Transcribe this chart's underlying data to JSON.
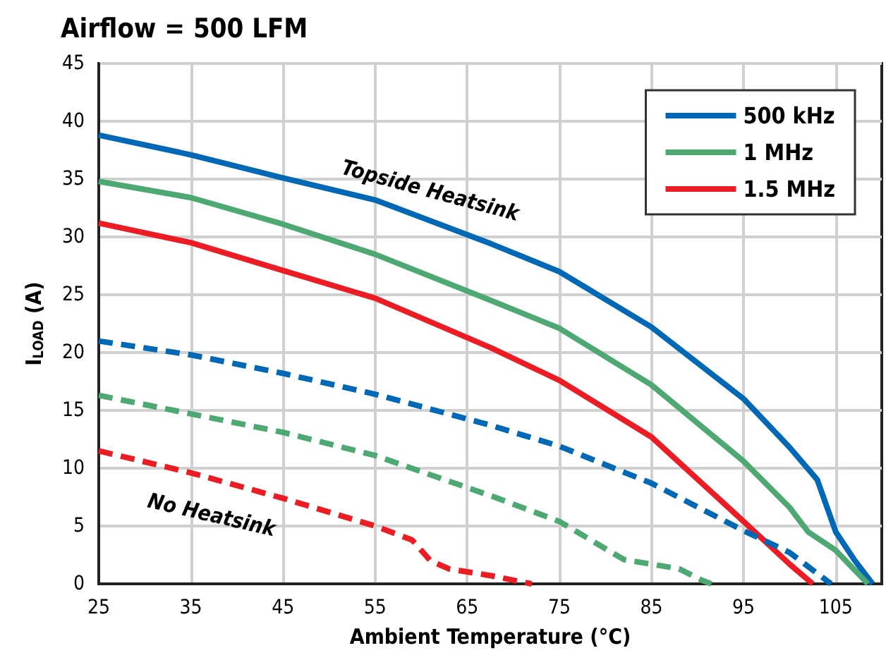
{
  "chart_data": {
    "type": "line",
    "title": "Airflow = 500 LFM",
    "xlabel": "Ambient Temperature (°C)",
    "ylabel": "I$_{LOAD}$ (A)",
    "annotations": [
      "Topside Heatsink",
      "No Heatsink"
    ],
    "xlim": [
      25,
      110
    ],
    "xticks": [
      25,
      35,
      45,
      55,
      65,
      75,
      85,
      95,
      105
    ],
    "ylim": [
      0,
      45
    ],
    "yticks": [
      0,
      5,
      10,
      15,
      20,
      25,
      30,
      35,
      40,
      45
    ],
    "grid": true,
    "legend": "top right",
    "marker": "none",
    "series": [
      {
        "name": "500 kHz",
        "color": "#0068b4",
        "line_style": "solid",
        "x": [
          25,
          35,
          45,
          55,
          67.6,
          75,
          85,
          95,
          100,
          103,
          105,
          107,
          109
        ],
        "values": [
          38.8,
          37.1,
          35.1,
          33.2,
          29.4,
          27.0,
          22.2,
          16.0,
          11.8,
          9.0,
          4.5,
          2.1,
          0
        ]
      },
      {
        "name": "1 MHz",
        "color": "#4ea872",
        "line_style": "solid",
        "x": [
          25,
          35,
          45,
          55,
          67.6,
          75,
          85,
          95,
          100,
          102,
          105,
          108.5
        ],
        "values": [
          34.8,
          33.4,
          31.1,
          28.5,
          24.5,
          22.1,
          17.2,
          10.6,
          6.6,
          4.5,
          2.9,
          0
        ]
      },
      {
        "name": "1.5 MHz",
        "color": "#ec1c24",
        "line_style": "solid",
        "x": [
          25,
          35,
          45,
          55,
          67.6,
          75,
          85,
          95,
          100,
          102.5
        ],
        "values": [
          31.2,
          29.5,
          27.1,
          24.7,
          20.4,
          17.6,
          12.7,
          5.4,
          1.7,
          0
        ]
      },
      {
        "color": "#0068b4",
        "line_style": "dashed",
        "x": [
          25,
          35,
          45,
          55,
          67.6,
          75,
          85,
          95,
          100,
          104,
          104.5
        ],
        "values": [
          21.0,
          19.8,
          18.2,
          16.4,
          13.7,
          11.9,
          8.7,
          4.6,
          2.7,
          0.3,
          0
        ]
      },
      {
        "color": "#4ea872",
        "line_style": "dashed",
        "x": [
          25,
          35,
          45,
          55,
          67.6,
          75,
          82,
          88,
          90.5,
          91.5
        ],
        "values": [
          16.3,
          14.7,
          13.1,
          11.1,
          7.6,
          5.4,
          2.1,
          1.3,
          0.3,
          0
        ]
      },
      {
        "color": "#ec1c24",
        "line_style": "dashed",
        "x": [
          25,
          35,
          45,
          55,
          59,
          61,
          63,
          67.6,
          72
        ],
        "values": [
          11.5,
          9.6,
          7.4,
          5.0,
          3.8,
          2.0,
          1.3,
          0.7,
          0
        ]
      }
    ]
  }
}
